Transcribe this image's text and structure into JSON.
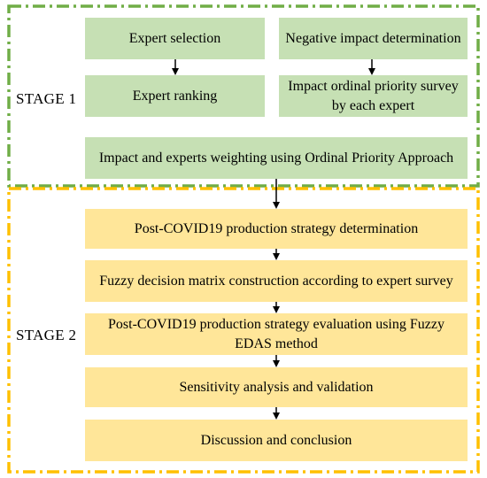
{
  "diagram": {
    "stage1": {
      "label": "STAGE 1",
      "frame_color": "#70ad47",
      "box_color": "#c6e0b4",
      "boxes": {
        "expert_selection": "Expert selection",
        "negative_impact": "Negative impact determination",
        "expert_ranking": "Expert ranking",
        "impact_ordinal": "Impact ordinal priority survey by each expert",
        "opa_weighting": "Impact and experts weighting using Ordinal Priority Approach"
      }
    },
    "stage2": {
      "label": "STAGE 2",
      "frame_color": "#ffc000",
      "box_color": "#ffe699",
      "boxes": {
        "strategy_determination": "Post-COVID19 production strategy determination",
        "fuzzy_matrix": "Fuzzy decision matrix construction according to expert survey",
        "strategy_evaluation": "Post-COVID19 production strategy evaluation using Fuzzy EDAS method",
        "sensitivity": "Sensitivity analysis and validation",
        "discussion": "Discussion and conclusion"
      }
    }
  }
}
